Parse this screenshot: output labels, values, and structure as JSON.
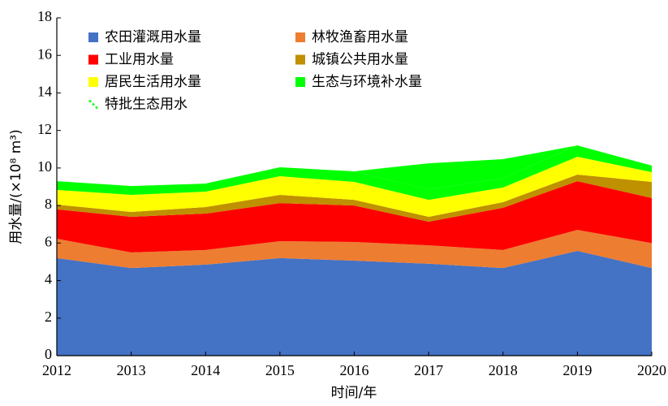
{
  "chart_data": {
    "type": "stacked_area",
    "x_label": "时间/年",
    "y_label": "用水量/(×10⁸ m³)",
    "x": [
      2012,
      2013,
      2014,
      2015,
      2016,
      2017,
      2018,
      2019,
      2020
    ],
    "xlim": [
      2012,
      2020
    ],
    "xticks": [
      2012,
      2013,
      2014,
      2015,
      2016,
      2017,
      2018,
      2019,
      2020
    ],
    "ylim": [
      0,
      18
    ],
    "yticks": [
      0,
      2,
      4,
      6,
      8,
      10,
      12,
      14,
      16,
      18
    ],
    "series": [
      {
        "name": "农田灌溉用水量",
        "color": "#4472c4",
        "values": [
          5.2,
          4.67,
          4.85,
          5.2,
          5.06,
          4.9,
          4.67,
          5.58,
          4.67
        ]
      },
      {
        "name": "林牧渔畜用水量",
        "color": "#ed7d31",
        "values": [
          1.03,
          0.83,
          0.78,
          0.9,
          1.0,
          0.98,
          0.96,
          1.12,
          1.33
        ]
      },
      {
        "name": "工业用水量",
        "color": "#ff0000",
        "values": [
          1.57,
          1.9,
          1.94,
          2.03,
          1.94,
          1.26,
          2.25,
          2.6,
          2.4
        ]
      },
      {
        "name": "城镇公共用水量",
        "color": "#bf9000",
        "values": [
          0.25,
          0.26,
          0.35,
          0.44,
          0.3,
          0.26,
          0.3,
          0.35,
          0.86
        ]
      },
      {
        "name": "居民生活用水量",
        "color": "#ffff00",
        "values": [
          0.78,
          0.91,
          0.82,
          0.99,
          0.96,
          0.9,
          0.78,
          0.95,
          0.52
        ]
      },
      {
        "name": "生态与环境补水量",
        "color": "#00ff00",
        "values": [
          0.47,
          0.47,
          0.43,
          0.48,
          0.56,
          0.55,
          0.5,
          0.6,
          0.35
        ]
      },
      {
        "name": "特批生态用水",
        "color": "#00ff00",
        "values": [
          0,
          0,
          0,
          0,
          0,
          1.4,
          1.01,
          0,
          0
        ]
      }
    ]
  }
}
